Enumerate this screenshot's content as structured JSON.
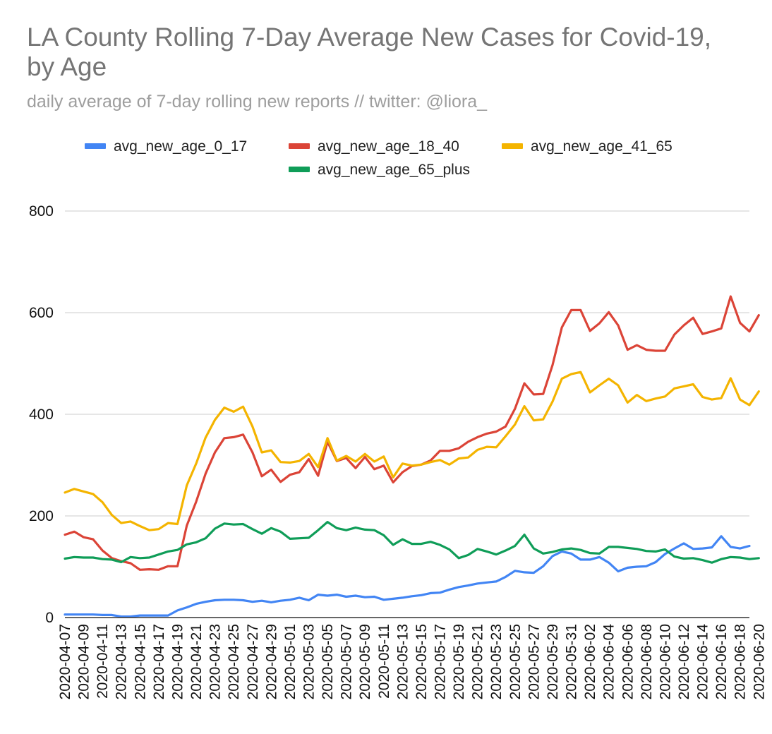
{
  "chart_data": {
    "type": "line",
    "title": "LA County Rolling 7-Day Average New Cases for Covid-19, by Age",
    "subtitle": "daily average of 7-day rolling new reports // twitter: @liora_",
    "xlabel": "",
    "ylabel": "",
    "ylim": [
      0,
      800
    ],
    "yticks": [
      0,
      200,
      400,
      600,
      800
    ],
    "grid": true,
    "legend_position": "top",
    "start_date": "2020-04-07",
    "x_tick_labels": [
      "2020-04-07",
      "2020-04-09",
      "2020-04-11",
      "2020-04-13",
      "2020-04-15",
      "2020-04-17",
      "2020-04-19",
      "2020-04-21",
      "2020-04-23",
      "2020-04-25",
      "2020-04-27",
      "2020-04-29",
      "2020-05-01",
      "2020-05-03",
      "2020-05-05",
      "2020-05-07",
      "2020-05-09",
      "2020-05-11",
      "2020-05-13",
      "2020-05-15",
      "2020-05-17",
      "2020-05-19",
      "2020-05-21",
      "2020-05-23",
      "2020-05-25",
      "2020-05-27",
      "2020-05-29",
      "2020-05-31",
      "2020-06-02",
      "2020-06-04",
      "2020-06-06",
      "2020-06-08",
      "2020-06-10",
      "2020-06-12",
      "2020-06-14",
      "2020-06-16",
      "2020-06-18",
      "2020-06-20"
    ],
    "series": [
      {
        "name": "avg_new_age_0_17",
        "color": "#4285f4",
        "values": [
          6,
          6,
          6,
          6,
          5,
          5,
          2,
          2,
          4,
          4,
          4,
          4,
          14,
          20,
          27,
          31,
          34,
          35,
          35,
          34,
          31,
          33,
          30,
          33,
          35,
          39,
          34,
          45,
          43,
          45,
          41,
          43,
          40,
          41,
          35,
          37,
          39,
          42,
          44,
          48,
          49,
          55,
          60,
          63,
          67,
          69,
          71,
          80,
          92,
          89,
          88,
          101,
          121,
          130,
          126,
          114,
          114,
          119,
          108,
          91,
          98,
          100,
          101,
          109,
          125,
          136,
          146,
          135,
          136,
          138,
          160,
          139,
          136,
          141
        ]
      },
      {
        "name": "avg_new_age_18_40",
        "color": "#db4437",
        "values": [
          163,
          169,
          158,
          154,
          132,
          117,
          111,
          107,
          94,
          95,
          94,
          101,
          101,
          181,
          228,
          283,
          325,
          353,
          355,
          360,
          325,
          278,
          291,
          267,
          281,
          286,
          312,
          279,
          346,
          308,
          314,
          294,
          316,
          292,
          299,
          266,
          286,
          298,
          301,
          309,
          328,
          328,
          333,
          346,
          355,
          362,
          366,
          376,
          411,
          461,
          439,
          440,
          497,
          571,
          605,
          605,
          564,
          579,
          601,
          575,
          527,
          536,
          527,
          525,
          525,
          557,
          575,
          590,
          558,
          563,
          569,
          632,
          580,
          563,
          595
        ]
      },
      {
        "name": "avg_new_age_41_65",
        "color": "#f4b400",
        "values": [
          246,
          253,
          248,
          243,
          227,
          202,
          186,
          189,
          180,
          172,
          174,
          186,
          184,
          260,
          303,
          354,
          389,
          413,
          405,
          415,
          376,
          325,
          329,
          306,
          305,
          308,
          322,
          296,
          353,
          309,
          318,
          307,
          322,
          307,
          317,
          276,
          303,
          299,
          301,
          306,
          310,
          301,
          313,
          315,
          330,
          336,
          335,
          357,
          380,
          416,
          388,
          390,
          425,
          470,
          479,
          483,
          443,
          457,
          470,
          457,
          423,
          438,
          426,
          431,
          435,
          451,
          455,
          459,
          434,
          429,
          432,
          471,
          429,
          418,
          445
        ]
      },
      {
        "name": "avg_new_age_65_plus",
        "color": "#0f9d58",
        "values": [
          116,
          119,
          118,
          118,
          115,
          114,
          109,
          119,
          117,
          118,
          124,
          130,
          133,
          144,
          148,
          156,
          175,
          185,
          183,
          184,
          174,
          165,
          176,
          169,
          155,
          156,
          157,
          172,
          188,
          176,
          172,
          177,
          173,
          172,
          162,
          143,
          154,
          145,
          145,
          149,
          143,
          134,
          117,
          123,
          135,
          130,
          124,
          132,
          141,
          163,
          136,
          126,
          129,
          134,
          136,
          133,
          127,
          126,
          139,
          139,
          137,
          135,
          131,
          130,
          134,
          120,
          116,
          117,
          113,
          108,
          115,
          119,
          118,
          115,
          117
        ]
      }
    ]
  }
}
